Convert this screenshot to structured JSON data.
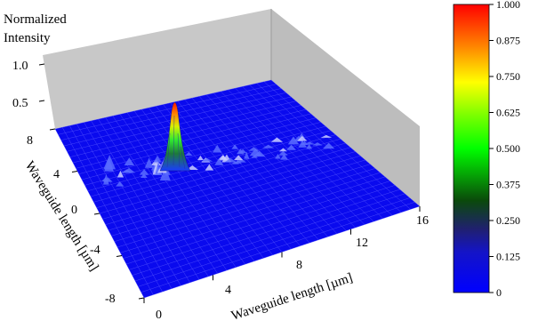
{
  "chart_data": {
    "type": "surface",
    "title": "",
    "zlabel_lines": [
      "Normalized",
      "Intensity"
    ],
    "xlabel": "Waveguide length [µm]",
    "ylabel": "Waveguide length [µm]",
    "x_ticks": [
      "0",
      "4",
      "8",
      "12",
      "16"
    ],
    "x_range": [
      0,
      16
    ],
    "y_ticks": [
      "8",
      "4",
      "0",
      "-4",
      "-8"
    ],
    "y_range": [
      -8,
      8
    ],
    "z_ticks": [
      "1.0",
      "0.5"
    ],
    "z_range": [
      0,
      1
    ],
    "peak": {
      "x": 2.0,
      "y": 2.5,
      "z": 1.0
    },
    "colorbar": {
      "ticks": [
        "1.000",
        "0.875",
        "0.750",
        "0.625",
        "0.500",
        "0.375",
        "0.250",
        "0.125",
        "0"
      ],
      "colors": [
        "#0000ff",
        "#1010a0",
        "#202060",
        "#006000",
        "#00ff00",
        "#ffff00",
        "#ff8000",
        "#ff0000"
      ]
    },
    "background_color": "#0a0aee",
    "grid_color": "#5a5aff",
    "wall_color": "#c8c8c8"
  }
}
